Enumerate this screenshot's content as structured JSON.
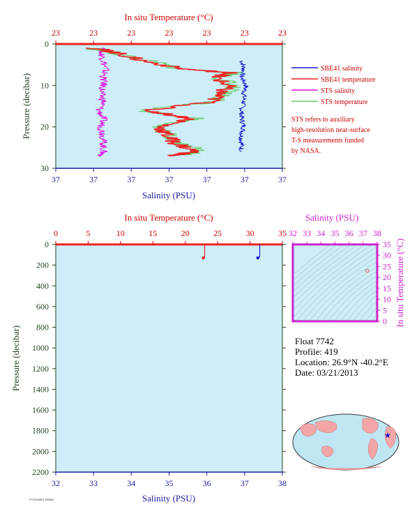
{
  "colors": {
    "plot_bg": "#cdeef8",
    "temp_axis": "#cc0000",
    "sal_axis": "#1a1aa0",
    "pressure_axis": "#1f3f1f",
    "sbe_salinity": "#1a1acc",
    "sbe_temperature": "#ee2222",
    "sts_salinity": "#dd11dd",
    "sts_temperature": "#66cc66",
    "ts_axis": "#cc22cc"
  },
  "chart_data": [
    {
      "type": "line",
      "panel": "top-profile",
      "top_axis_label": "In situ Temperature (°C)",
      "top_tick_labels": [
        "23",
        "23",
        "23",
        "23",
        "23",
        "23",
        "23"
      ],
      "bottom_axis_label": "Salinity (PSU)",
      "bottom_tick_labels": [
        "37",
        "37",
        "37",
        "37",
        "37",
        "37",
        "37"
      ],
      "ylabel": "Pressure (decibar)",
      "y_tick_labels": [
        "0",
        "10",
        "20",
        "30"
      ],
      "ylim": [
        0,
        30
      ],
      "legend": {
        "placement": "right",
        "entries": [
          {
            "name": "SBE41 salinity",
            "color": "#1a1acc"
          },
          {
            "name": "SBE41 temperature",
            "color": "#ee2222"
          },
          {
            "name": "STS salinity",
            "color": "#dd11dd"
          },
          {
            "name": "STS temperature",
            "color": "#66cc66"
          }
        ]
      },
      "note": [
        "STS refers to auxiliary",
        "high-resolution near-surface",
        "T-S measurements funded",
        "by NASA."
      ],
      "series": [
        {
          "name": "SBE41 salinity",
          "pressure": [
            4,
            6,
            8,
            10,
            12,
            14,
            16,
            18,
            20,
            22,
            24,
            26
          ],
          "x_frac": [
            0.82,
            0.83,
            0.82,
            0.84,
            0.83,
            0.83,
            0.82,
            0.82,
            0.83,
            0.82,
            0.82,
            0.82
          ]
        },
        {
          "name": "STS salinity",
          "pressure": [
            1,
            2,
            4,
            6,
            8,
            10,
            12,
            14,
            16,
            18,
            20,
            22,
            24,
            26,
            27
          ],
          "x_frac": [
            0.22,
            0.2,
            0.21,
            0.22,
            0.21,
            0.21,
            0.2,
            0.21,
            0.19,
            0.21,
            0.2,
            0.21,
            0.21,
            0.21,
            0.2
          ]
        },
        {
          "name": "STS temperature",
          "pressure": [
            1,
            2,
            4,
            6,
            7,
            8,
            10,
            12,
            14,
            16,
            18,
            20,
            22,
            24,
            26,
            27
          ],
          "x_frac": [
            0.15,
            0.25,
            0.4,
            0.55,
            0.8,
            0.72,
            0.78,
            0.74,
            0.7,
            0.38,
            0.62,
            0.45,
            0.5,
            0.55,
            0.65,
            0.52
          ]
        },
        {
          "name": "SBE41 temperature",
          "pressure": [
            1,
            2,
            4,
            6,
            7,
            8,
            10,
            12,
            14,
            16,
            18,
            20,
            22,
            24,
            26,
            27
          ],
          "x_frac": [
            0.17,
            0.26,
            0.38,
            0.56,
            0.78,
            0.7,
            0.76,
            0.72,
            0.69,
            0.4,
            0.6,
            0.46,
            0.49,
            0.53,
            0.62,
            0.5
          ]
        }
      ]
    },
    {
      "type": "line",
      "panel": "bottom-profile",
      "top_axis_label": "In situ Temperature (°C)",
      "top_ticks": [
        0,
        5,
        10,
        15,
        20,
        25,
        30,
        35
      ],
      "xlim_temperature": [
        0,
        35
      ],
      "bottom_axis_label": "Salinity (PSU)",
      "bottom_ticks": [
        32,
        33,
        34,
        35,
        36,
        37,
        38
      ],
      "xlim_salinity": [
        32,
        38
      ],
      "ylabel": "Pressure (decibar)",
      "y_ticks": [
        0,
        200,
        400,
        600,
        800,
        1000,
        1200,
        1400,
        1600,
        1800,
        2000,
        2200
      ],
      "ylim": [
        0,
        2200
      ],
      "series": [
        {
          "name": "temperature",
          "color": "#ee2222",
          "points": [
            [
              23.0,
              0
            ],
            [
              23.0,
              120
            ],
            [
              22.8,
              130
            ]
          ]
        },
        {
          "name": "salinity",
          "color": "#1a1acc",
          "points": [
            [
              37.4,
              0
            ],
            [
              37.4,
              120
            ],
            [
              37.35,
              130
            ]
          ]
        }
      ]
    },
    {
      "type": "scatter",
      "panel": "ts-diagram",
      "top_axis_label": "Salinity (PSU)",
      "top_ticks": [
        32,
        33,
        34,
        35,
        36,
        37,
        38
      ],
      "right_axis_label": "In situ Temperature (°C)",
      "right_ticks": [
        0,
        5,
        10,
        15,
        20,
        25,
        30,
        35
      ],
      "points": [
        [
          37.3,
          23.0
        ]
      ]
    }
  ],
  "float_info": {
    "float": "Float  7742",
    "profile": "Profile:  419",
    "location": "Location:  26.9°N  -40.2°E",
    "date": "Date:  03/21/2013"
  },
  "map": {
    "marker": "star",
    "marker_color": "#0000cc"
  },
  "footer_note": "F7742/F0001 ID0000"
}
